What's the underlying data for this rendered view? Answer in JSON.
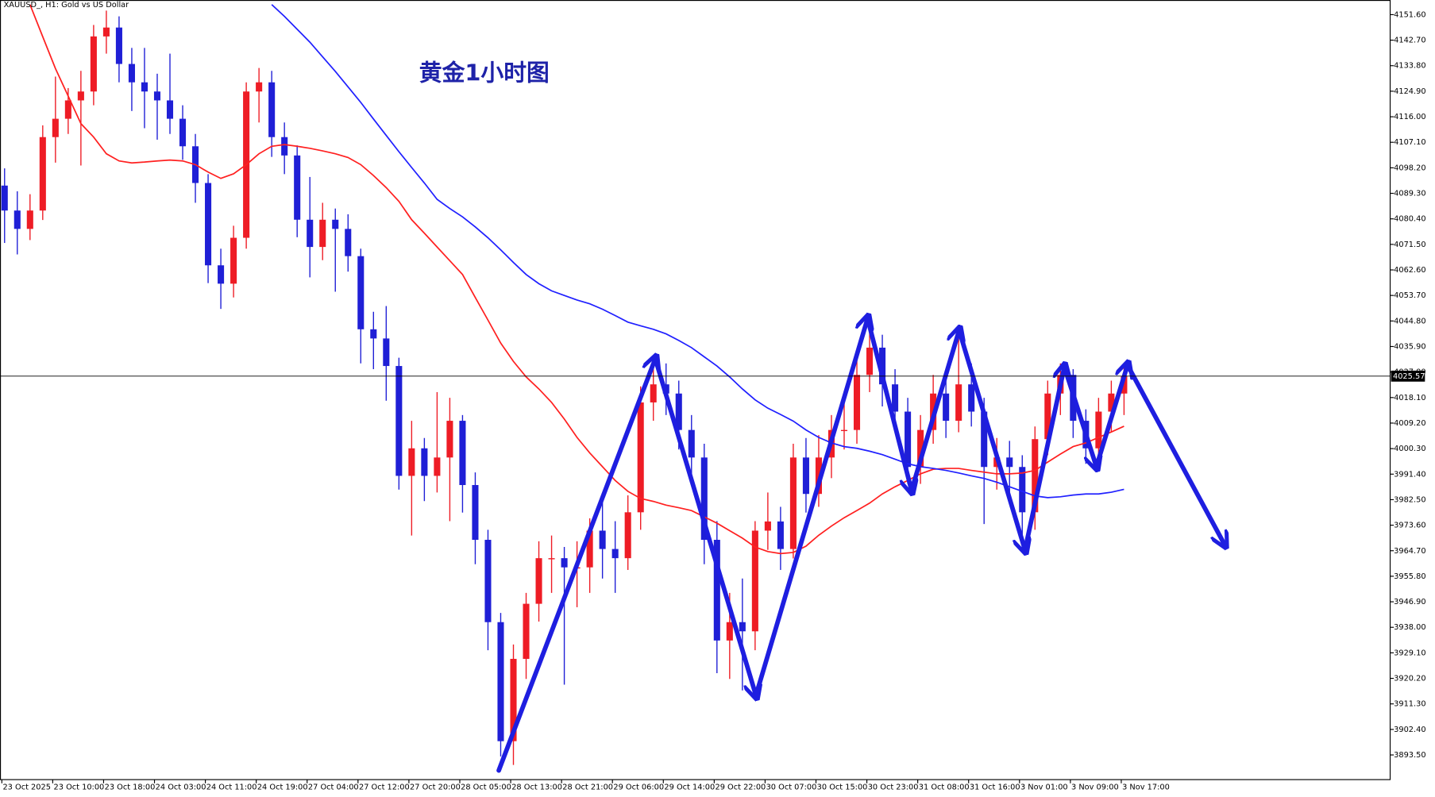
{
  "chart_data": {
    "type": "candlestick",
    "title": "黄金1小时图",
    "subtitle": "XAUUSD_, H1:  Gold vs US Dollar",
    "categories": [
      "23 Oct 2025",
      null,
      null,
      null,
      "23 Oct 10:00",
      null,
      null,
      null,
      "23 Oct 18:00",
      null,
      null,
      null,
      "24 Oct 03:00",
      null,
      null,
      null,
      "24 Oct 11:00",
      null,
      null,
      null,
      "24 Oct 19:00",
      null,
      null,
      null,
      "27 Oct 04:00",
      null,
      null,
      null,
      "27 Oct 12:00",
      null,
      null,
      null,
      "27 Oct 20:00",
      null,
      null,
      null,
      "28 Oct 05:00",
      null,
      null,
      null,
      "28 Oct 13:00",
      null,
      null,
      null,
      "28 Oct 21:00",
      null,
      null,
      null,
      "29 Oct 06:00",
      null,
      null,
      null,
      "29 Oct 14:00",
      null,
      null,
      null,
      "29 Oct 22:00",
      null,
      null,
      null,
      "30 Oct 07:00",
      null,
      null,
      null,
      "30 Oct 15:00",
      null,
      null,
      null,
      "30 Oct 23:00",
      null,
      null,
      null,
      "31 Oct 08:00",
      null,
      null,
      null,
      "31 Oct 16:00",
      null,
      null,
      null,
      "3 Nov 01:00",
      null,
      null,
      null,
      "3 Nov 09:00",
      null,
      null,
      null,
      "3 Nov 17:00"
    ],
    "open": [
      4092.0,
      4083.3,
      4076.9,
      4083.3,
      4108.9,
      4115.3,
      4121.7,
      4124.8,
      4144.0,
      4147.1,
      4134.4,
      4128.0,
      4124.8,
      4121.7,
      4115.3,
      4105.7,
      4092.9,
      4064.2,
      4057.8,
      4073.8,
      4124.8,
      4128.0,
      4108.9,
      4102.5,
      4080.1,
      4070.6,
      4080.1,
      4076.9,
      4067.4,
      4041.9,
      4038.7,
      4029.1,
      3990.8,
      4000.4,
      3990.8,
      3997.2,
      4010.0,
      3987.6,
      3968.5,
      3939.8,
      3898.3,
      3927.0,
      3946.2,
      3962.1,
      3962.1,
      3958.9,
      3958.9,
      3971.7,
      3965.3,
      3962.1,
      3978.1,
      4016.4,
      4022.7,
      4019.5,
      4006.8,
      3997.2,
      3968.5,
      3933.4,
      3939.8,
      3936.6,
      3971.7,
      3974.9,
      3965.3,
      3997.2,
      3984.5,
      3997.2,
      4006.8,
      4006.8,
      4026.0,
      4035.5,
      4022.7,
      4013.2,
      3993.9,
      4006.8,
      4019.5,
      4010.0,
      4022.7,
      4013.2,
      3993.9,
      3997.2,
      3993.9,
      3978.1,
      4003.6,
      4019.5,
      4026.0,
      4010.0,
      4000.4,
      4013.2,
      4019.5
    ],
    "high": [
      4098.0,
      4090.0,
      4089.0,
      4113.0,
      4130.0,
      4126.0,
      4132.0,
      4148.0,
      4153.0,
      4151.0,
      4140.0,
      4140.0,
      4131.0,
      4138.0,
      4120.0,
      4110.0,
      4096.0,
      4070.0,
      4078.0,
      4128.0,
      4133.0,
      4132.0,
      4114.0,
      4106.0,
      4095.0,
      4086.0,
      4084.0,
      4082.0,
      4070.0,
      4048.0,
      4050.0,
      4032.0,
      4010.0,
      4004.0,
      4020.0,
      4018.0,
      4012.0,
      3992.0,
      3972.0,
      3943.0,
      3932.0,
      3950.0,
      3968.0,
      3970.0,
      3966.0,
      3968.0,
      3976.0,
      3982.0,
      3975.0,
      3984.0,
      4022.0,
      4030.0,
      4030.0,
      4024.0,
      4012.0,
      4002.0,
      3975.0,
      3950.0,
      3955.0,
      3975.0,
      3985.0,
      3980.0,
      4002.0,
      4004.0,
      4005.0,
      4012.0,
      4018.0,
      4032.0,
      4045.0,
      4040.0,
      4028.0,
      4018.0,
      4012.0,
      4026.0,
      4025.0,
      4040.0,
      4030.0,
      4018.0,
      4004.0,
      4003.0,
      3998.0,
      4008.0,
      4024.0,
      4030.0,
      4028.0,
      4014.0,
      4018.0,
      4024.0,
      4030.0
    ],
    "low": [
      4072.0,
      4068.0,
      4073.0,
      4080.0,
      4100.0,
      4110.0,
      4099.0,
      4120.0,
      4138.0,
      4128.0,
      4118.0,
      4112.0,
      4108.0,
      4110.0,
      4101.0,
      4086.0,
      4058.0,
      4049.0,
      4053.0,
      4070.0,
      4114.0,
      4102.0,
      4096.0,
      4074.0,
      4060.0,
      4066.0,
      4055.0,
      4062.0,
      4030.0,
      4028.0,
      4017.0,
      3986.0,
      3970.0,
      3982.0,
      3985.0,
      3975.0,
      3978.0,
      3960.0,
      3930.0,
      3893.0,
      3890.0,
      3920.0,
      3940.0,
      3950.0,
      3918.0,
      3945.0,
      3950.0,
      3955.0,
      3950.0,
      3958.0,
      3972.0,
      4010.0,
      4012.0,
      4000.0,
      3990.0,
      3960.0,
      3922.0,
      3920.0,
      3916.0,
      3930.0,
      3965.0,
      3958.0,
      3962.0,
      3978.0,
      3980.0,
      3990.0,
      4000.0,
      4002.0,
      4020.0,
      4015.0,
      4008.0,
      3988.0,
      3988.0,
      4002.0,
      4004.0,
      4006.0,
      4008.0,
      3974.0,
      3986.0,
      3985.0,
      3965.0,
      3972.0,
      3998.0,
      4012.0,
      4004.0,
      3995.0,
      3996.0,
      4006.0,
      4012.0
    ],
    "close": [
      4083.3,
      4076.9,
      4083.3,
      4108.9,
      4115.3,
      4121.7,
      4124.8,
      4144.0,
      4147.1,
      4134.4,
      4128.0,
      4124.8,
      4121.7,
      4115.3,
      4105.7,
      4092.9,
      4064.2,
      4057.8,
      4073.8,
      4124.8,
      4128.0,
      4108.9,
      4102.5,
      4080.1,
      4070.6,
      4080.1,
      4076.9,
      4067.4,
      4041.9,
      4038.7,
      4029.1,
      3990.8,
      4000.4,
      3990.8,
      3997.2,
      4010.0,
      3987.6,
      3968.5,
      3939.8,
      3898.3,
      3927.0,
      3946.2,
      3962.1,
      3962.1,
      3958.9,
      3958.9,
      3971.7,
      3965.3,
      3962.1,
      3978.1,
      4016.4,
      4022.7,
      4019.5,
      4006.8,
      3997.2,
      3968.5,
      3933.4,
      3939.8,
      3936.6,
      3971.7,
      3974.9,
      3965.3,
      3997.2,
      3984.5,
      3997.2,
      4006.8,
      4006.8,
      4026.0,
      4035.5,
      4022.7,
      4013.2,
      3993.9,
      4006.8,
      4019.5,
      4010.0,
      4022.7,
      4013.2,
      3993.9,
      3997.2,
      3993.9,
      3978.1,
      4003.6,
      4019.5,
      4026.0,
      4010.0,
      4000.4,
      4013.2,
      4019.5,
      4025.57
    ],
    "up_color": "#ee1c25",
    "down_color": "#1f1fd6",
    "lines": [
      {
        "color": "#ff2020",
        "values": [
          null,
          null,
          4155.1,
          4143.9,
          4132.8,
          4123.2,
          4113.6,
          4108.9,
          4103.1,
          4100.6,
          4099.9,
          4100.2,
          4100.6,
          4100.9,
          4100.6,
          4099.3,
          4096.7,
          4094.5,
          4096.1,
          4099.3,
          4103.1,
          4105.7,
          4106.3,
          4105.7,
          4105.0,
          4104.1,
          4103.1,
          4101.8,
          4099.3,
          4095.5,
          4091.3,
          4086.5,
          4080.1,
          4075.4,
          4070.6,
          4065.8,
          4061.0,
          4053.0,
          4045.1,
          4037.1,
          4030.7,
          4025.3,
          4021.1,
          4016.4,
          4010.6,
          4004.2,
          3998.8,
          3994.0,
          3989.2,
          3985.4,
          3982.9,
          3981.9,
          3980.6,
          3979.7,
          3978.7,
          3976.5,
          3974.3,
          3971.7,
          3969.1,
          3966.0,
          3964.4,
          3963.7,
          3964.1,
          3966.3,
          3970.1,
          3973.3,
          3976.2,
          3978.7,
          3981.3,
          3984.5,
          3987.0,
          3989.2,
          3991.5,
          3993.1,
          3993.4,
          3993.4,
          3992.7,
          3992.1,
          3991.5,
          3991.5,
          3991.8,
          3992.7,
          3995.6,
          3998.4,
          4001.0,
          4002.3,
          4004.2,
          4006.1,
          4008.1
        ]
      },
      {
        "color": "#2020ff",
        "values": [
          null,
          null,
          null,
          null,
          null,
          null,
          null,
          null,
          null,
          null,
          null,
          null,
          null,
          null,
          null,
          null,
          null,
          null,
          null,
          null,
          null,
          4155.1,
          4151.0,
          4146.5,
          4142.0,
          4136.9,
          4131.8,
          4126.4,
          4121.0,
          4115.2,
          4109.5,
          4103.8,
          4098.3,
          4092.9,
          4087.2,
          4084.0,
          4081.1,
          4077.6,
          4073.8,
          4069.6,
          4065.2,
          4061.0,
          4057.8,
          4055.3,
          4053.7,
          4052.1,
          4050.8,
          4048.9,
          4046.7,
          4044.4,
          4043.1,
          4041.9,
          4040.3,
          4038.0,
          4035.5,
          4032.3,
          4029.1,
          4025.3,
          4021.1,
          4017.3,
          4014.4,
          4012.2,
          4009.9,
          4006.8,
          4004.2,
          4002.3,
          4001.0,
          4000.4,
          3999.4,
          3998.2,
          3996.6,
          3995.0,
          3994.0,
          3993.4,
          3992.7,
          3991.8,
          3990.8,
          3989.9,
          3988.6,
          3987.0,
          3985.4,
          3983.8,
          3983.2,
          3983.5,
          3984.1,
          3984.5,
          3984.5,
          3985.1,
          3986.1
        ]
      }
    ],
    "last_price": {
      "value": 4025.57,
      "label": "4025.57"
    },
    "ylim": [
      3884.9,
      4156.7
    ],
    "yticks": [
      {
        "value": 4151.6,
        "label": "4151.60"
      },
      {
        "value": 4142.7,
        "label": "4142.70"
      },
      {
        "value": 4133.8,
        "label": "4133.80"
      },
      {
        "value": 4124.9,
        "label": "4124.90"
      },
      {
        "value": 4116.0,
        "label": "4116.00"
      },
      {
        "value": 4107.1,
        "label": "4107.10"
      },
      {
        "value": 4098.2,
        "label": "4098.20"
      },
      {
        "value": 4089.3,
        "label": "4089.30"
      },
      {
        "value": 4080.4,
        "label": "4080.40"
      },
      {
        "value": 4071.5,
        "label": "4071.50"
      },
      {
        "value": 4062.6,
        "label": "4062.60"
      },
      {
        "value": 4053.7,
        "label": "4053.70"
      },
      {
        "value": 4044.8,
        "label": "4044.80"
      },
      {
        "value": 4035.9,
        "label": "4035.90"
      },
      {
        "value": 4027.0,
        "label": "4027.00"
      },
      {
        "value": 4018.1,
        "label": "4018.10"
      },
      {
        "value": 4009.2,
        "label": "4009.20"
      },
      {
        "value": 4000.3,
        "label": "4000.30"
      },
      {
        "value": 3991.4,
        "label": "3991.40"
      },
      {
        "value": 3982.5,
        "label": "3982.50"
      },
      {
        "value": 3973.6,
        "label": "3973.60"
      },
      {
        "value": 3964.7,
        "label": "3964.70"
      },
      {
        "value": 3955.8,
        "label": "3955.80"
      },
      {
        "value": 3946.9,
        "label": "3946.90"
      },
      {
        "value": 3938.0,
        "label": "3938.00"
      },
      {
        "value": 3929.1,
        "label": "3929.10"
      },
      {
        "value": 3920.2,
        "label": "3920.20"
      },
      {
        "value": 3911.3,
        "label": "3911.30"
      },
      {
        "value": 3902.4,
        "label": "3902.40"
      },
      {
        "value": 3893.5,
        "label": "3893.50"
      }
    ],
    "grid": false
  }
}
